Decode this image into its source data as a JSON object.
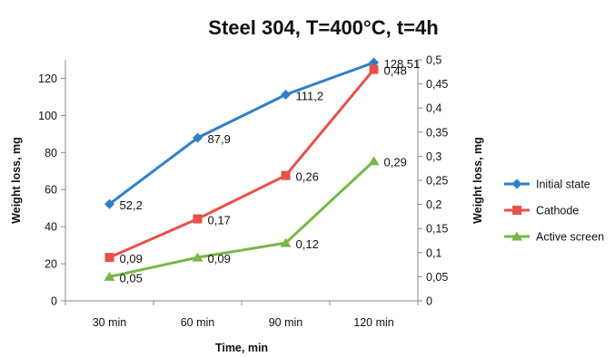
{
  "chart_data": {
    "type": "line",
    "title": "Steel 304, T=400°C, t=4h",
    "xlabel": "Time, min",
    "ylabel_left": "Weight loss, mg",
    "ylabel_right": "Weight loss, mg",
    "categories": [
      "30 min",
      "60 min",
      "90 min",
      "120 min"
    ],
    "ylim_left": [
      0,
      130
    ],
    "yticks_left": [
      "0",
      "20",
      "40",
      "60",
      "80",
      "100",
      "120"
    ],
    "ylim_right": [
      0,
      0.5
    ],
    "yticks_right": [
      "0",
      "0,05",
      "0,1",
      "0,15",
      "0,2",
      "0,25",
      "0,3",
      "0,35",
      "0,4",
      "0,45",
      "0,5"
    ],
    "grid": false,
    "legend_position": "right",
    "series": [
      {
        "name": "Initial state",
        "axis": "left",
        "marker": "diamond",
        "color": "#2f7fc7",
        "values": [
          52.2,
          87.9,
          111.2,
          128.51
        ],
        "labels": [
          "52,2",
          "87,9",
          "111,2",
          "128,51"
        ]
      },
      {
        "name": "Cathode",
        "axis": "right",
        "marker": "square",
        "color": "#e8504a",
        "values": [
          0.09,
          0.17,
          0.26,
          0.48
        ],
        "labels": [
          "0,09",
          "0,17",
          "0,26",
          "0,48"
        ]
      },
      {
        "name": "Active screen",
        "axis": "right",
        "marker": "triangle",
        "color": "#7ab648",
        "values": [
          0.05,
          0.09,
          0.12,
          0.29
        ],
        "labels": [
          "0,05",
          "0,09",
          "0,12",
          "0,29"
        ]
      }
    ]
  }
}
